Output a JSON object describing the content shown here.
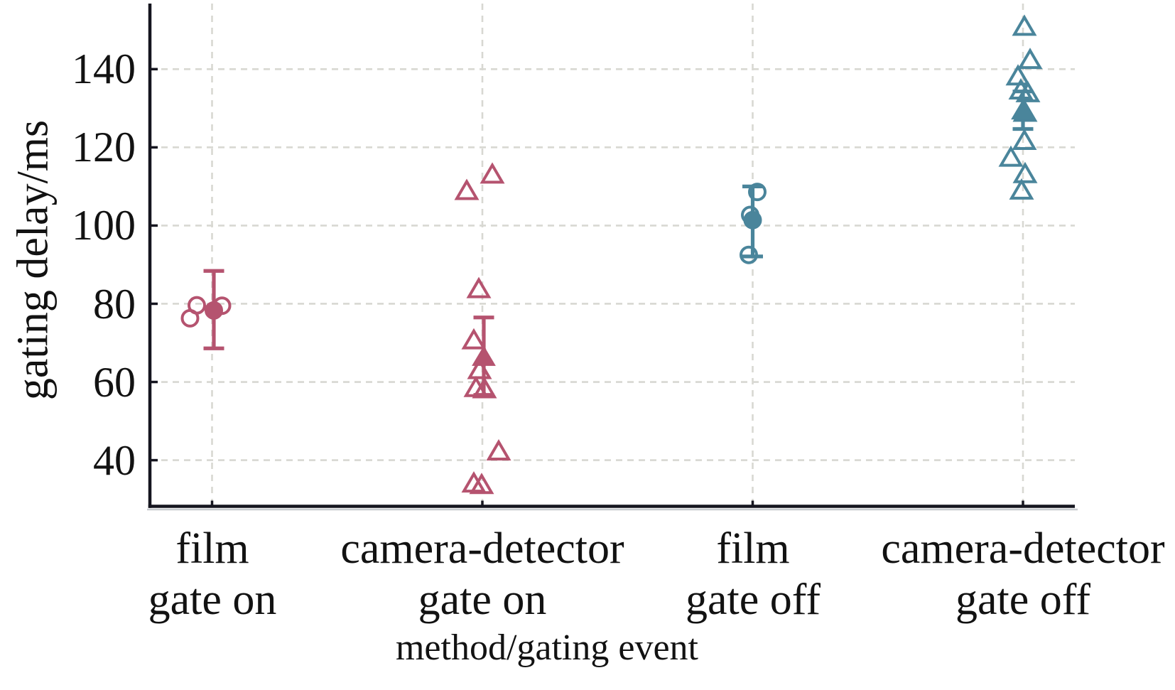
{
  "chart_data": {
    "type": "scatter",
    "title": "",
    "xlabel": "method/gating event",
    "ylabel": "gating delay/ms",
    "grid": true,
    "grid_style": "dashed",
    "legend": false,
    "y_ticks": [
      40,
      60,
      80,
      100,
      120,
      140
    ],
    "ylim": [
      27.9,
      156.6
    ],
    "y_unit": "ms",
    "colors": {
      "gate_on": "#b5536f",
      "gate_off": "#4a859b",
      "axis": "#15151f",
      "grid": "#d8d8d2",
      "axis_shadow": "#9ba1a8"
    },
    "groups": [
      {
        "category": [
          "film",
          "gate on"
        ],
        "method": "film",
        "event": "gate on",
        "marker": "circle",
        "color_key": "gate_on",
        "points": [
          {
            "v": 79.6,
            "dx": -21.5
          },
          {
            "v": 79.5,
            "dx": 14
          },
          {
            "v": 76.3,
            "dx": -31
          }
        ],
        "mean": {
          "v": 78.3,
          "dx": 2.5
        },
        "error": {
          "lo": 68.6,
          "hi": 88.4
        }
      },
      {
        "category": [
          "camera-detector",
          "gate on"
        ],
        "method": "camera-detector",
        "event": "gate on",
        "marker": "triangle",
        "color_key": "gate_on",
        "points": [
          {
            "v": 113.1,
            "dx": 14
          },
          {
            "v": 108.9,
            "dx": -22
          },
          {
            "v": 83.8,
            "dx": -5
          },
          {
            "v": 70.7,
            "dx": -12
          },
          {
            "v": 63.1,
            "dx": -4
          },
          {
            "v": 58.5,
            "dx": -9
          },
          {
            "v": 58.2,
            "dx": 3
          },
          {
            "v": 42.3,
            "dx": 23
          },
          {
            "v": 34.1,
            "dx": -12
          },
          {
            "v": 33.7,
            "dx": -1
          }
        ],
        "mean": {
          "v": 66.4,
          "dx": 2
        },
        "error": {
          "lo": 56.7,
          "hi": 76.5
        }
      },
      {
        "category": [
          "film",
          "gate off"
        ],
        "method": "film",
        "event": "gate off",
        "marker": "circle",
        "color_key": "gate_off",
        "points": [
          {
            "v": 108.6,
            "dx": 6.5
          },
          {
            "v": 102.7,
            "dx": -3.5
          },
          {
            "v": 92.5,
            "dx": -5.5
          }
        ],
        "mean": {
          "v": 101.4,
          "dx": 0
        },
        "error": {
          "lo": 92.1,
          "hi": 110.0
        }
      },
      {
        "category": [
          "camera-detector",
          "gate off"
        ],
        "method": "camera-detector",
        "event": "gate off",
        "marker": "triangle",
        "color_key": "gate_off",
        "points": [
          {
            "v": 150.9,
            "dx": 2
          },
          {
            "v": 142.4,
            "dx": 10
          },
          {
            "v": 138.2,
            "dx": -7
          },
          {
            "v": 134.6,
            "dx": -3
          },
          {
            "v": 133.9,
            "dx": 7
          },
          {
            "v": 128.9,
            "dx": 3
          },
          {
            "v": 121.7,
            "dx": 2
          },
          {
            "v": 117.4,
            "dx": -17
          },
          {
            "v": 113.2,
            "dx": 3
          },
          {
            "v": 109.0,
            "dx": -2
          }
        ],
        "mean": {
          "v": 129.4,
          "dx": 0
        },
        "error": {
          "lo": 124.7,
          "hi": 134.3
        }
      }
    ]
  }
}
